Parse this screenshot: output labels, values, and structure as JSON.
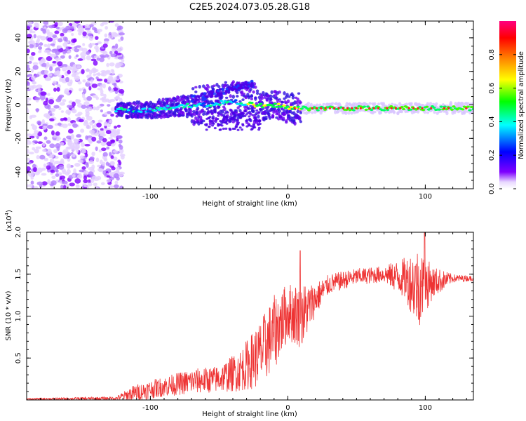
{
  "title": "C2E5.2024.073.05.28.G18",
  "chart_data": [
    {
      "type": "heatmap",
      "xlabel": "Height of straight line (km)",
      "ylabel": "Frequency (Hz)",
      "xlim": [
        -190,
        135
      ],
      "ylim": [
        -50,
        50
      ],
      "xticks": [
        -100,
        0,
        100
      ],
      "yticks": [
        -40,
        -20,
        0,
        20,
        40
      ],
      "colorbar": {
        "label": "Normalized spectral amplitude",
        "range": [
          0,
          1
        ],
        "ticks": [
          0.0,
          0.2,
          0.4,
          0.6,
          0.8
        ],
        "colors": [
          "#ffffff",
          "#7f00ff",
          "#0000ff",
          "#00ffff",
          "#00ff00",
          "#ffff00",
          "#ff8000",
          "#ff0000",
          "#ff0080"
        ]
      },
      "track": [
        {
          "x": -125,
          "y": -3
        },
        {
          "x": -100,
          "y": -3
        },
        {
          "x": -80,
          "y": -1
        },
        {
          "x": -60,
          "y": 0
        },
        {
          "x": -40,
          "y": 2
        },
        {
          "x": -25,
          "y": 0
        },
        {
          "x": -15,
          "y": -1
        },
        {
          "x": -5,
          "y": 0
        },
        {
          "x": 0,
          "y": -2
        },
        {
          "x": 10,
          "y": -2
        },
        {
          "x": 50,
          "y": -2
        },
        {
          "x": 100,
          "y": -2
        },
        {
          "x": 135,
          "y": -2
        }
      ],
      "grid": false
    },
    {
      "type": "line",
      "xlabel": "Height of straight line (km)",
      "ylabel": "SNR (10 * v/v)",
      "y_multiplier": "(x10",
      "y_multiplier_exp": "4",
      "y_multiplier_close": ")",
      "xlim": [
        -190,
        135
      ],
      "ylim": [
        0,
        2.0
      ],
      "xticks": [
        -100,
        0,
        100
      ],
      "yticks": [
        0.5,
        1.0,
        1.5,
        2.0
      ],
      "series_color": "#ee3333",
      "envelope": [
        {
          "x": -190,
          "mean": 0.01,
          "amp": 0.01
        },
        {
          "x": -125,
          "mean": 0.02,
          "amp": 0.02
        },
        {
          "x": -112,
          "mean": 0.08,
          "amp": 0.1
        },
        {
          "x": -90,
          "mean": 0.16,
          "amp": 0.12
        },
        {
          "x": -70,
          "mean": 0.22,
          "amp": 0.15
        },
        {
          "x": -50,
          "mean": 0.25,
          "amp": 0.16
        },
        {
          "x": -35,
          "mean": 0.35,
          "amp": 0.25
        },
        {
          "x": -20,
          "mean": 0.55,
          "amp": 0.4
        },
        {
          "x": -10,
          "mean": 0.8,
          "amp": 0.45
        },
        {
          "x": 0,
          "mean": 1.05,
          "amp": 0.35
        },
        {
          "x": 10,
          "mean": 1.0,
          "amp": 0.4
        },
        {
          "x": 20,
          "mean": 1.2,
          "amp": 0.2
        },
        {
          "x": 30,
          "mean": 1.38,
          "amp": 0.12
        },
        {
          "x": 50,
          "mean": 1.47,
          "amp": 0.1
        },
        {
          "x": 70,
          "mean": 1.5,
          "amp": 0.1
        },
        {
          "x": 85,
          "mean": 1.45,
          "amp": 0.25
        },
        {
          "x": 95,
          "mean": 1.35,
          "amp": 0.5
        },
        {
          "x": 105,
          "mean": 1.4,
          "amp": 0.2
        },
        {
          "x": 120,
          "mean": 1.45,
          "amp": 0.05
        },
        {
          "x": 135,
          "mean": 1.45,
          "amp": 0.03
        }
      ],
      "grid": false
    }
  ]
}
